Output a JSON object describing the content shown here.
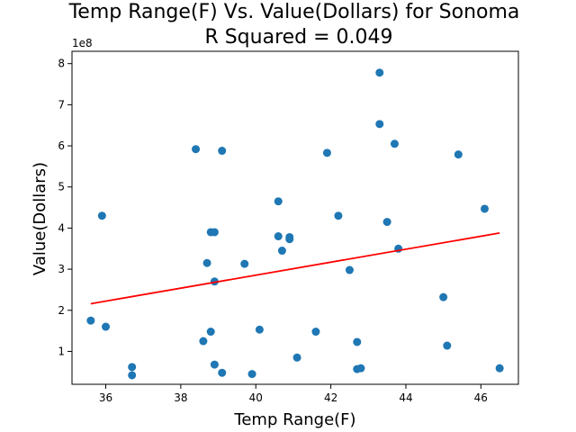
{
  "chart_data": {
    "type": "scatter",
    "title_line1": "Temp Range(F) Vs. Value(Dollars) for Sonoma",
    "title_line2": "R Squared =  0.049",
    "xlabel": "Temp Range(F)",
    "ylabel": "Value(Dollars)",
    "y_offset_label": "1e8",
    "xlim": [
      35.1,
      47.0
    ],
    "ylim": [
      0.2,
      8.3
    ],
    "x_ticks": [
      36,
      38,
      40,
      42,
      44,
      46
    ],
    "y_ticks": [
      1,
      2,
      3,
      4,
      5,
      6,
      7,
      8
    ],
    "point_color": "#1f77b4",
    "line_color": "#ff0000",
    "points": [
      {
        "x": 35.6,
        "y": 1.75
      },
      {
        "x": 36.0,
        "y": 1.6
      },
      {
        "x": 35.9,
        "y": 4.3
      },
      {
        "x": 36.7,
        "y": 0.62
      },
      {
        "x": 36.7,
        "y": 0.42
      },
      {
        "x": 38.4,
        "y": 5.92
      },
      {
        "x": 38.6,
        "y": 1.25
      },
      {
        "x": 38.7,
        "y": 3.15
      },
      {
        "x": 38.8,
        "y": 3.9
      },
      {
        "x": 38.8,
        "y": 1.48
      },
      {
        "x": 38.9,
        "y": 3.9
      },
      {
        "x": 38.9,
        "y": 2.7
      },
      {
        "x": 38.9,
        "y": 0.68
      },
      {
        "x": 39.1,
        "y": 5.88
      },
      {
        "x": 39.1,
        "y": 0.48
      },
      {
        "x": 39.7,
        "y": 3.13
      },
      {
        "x": 39.9,
        "y": 0.45
      },
      {
        "x": 40.1,
        "y": 1.53
      },
      {
        "x": 40.6,
        "y": 4.65
      },
      {
        "x": 40.6,
        "y": 3.8
      },
      {
        "x": 40.7,
        "y": 3.45
      },
      {
        "x": 40.9,
        "y": 3.78
      },
      {
        "x": 40.9,
        "y": 3.73
      },
      {
        "x": 41.1,
        "y": 0.85
      },
      {
        "x": 41.6,
        "y": 1.48
      },
      {
        "x": 41.9,
        "y": 5.83
      },
      {
        "x": 42.2,
        "y": 4.3
      },
      {
        "x": 42.5,
        "y": 2.98
      },
      {
        "x": 42.7,
        "y": 1.23
      },
      {
        "x": 42.7,
        "y": 0.57
      },
      {
        "x": 42.8,
        "y": 0.59
      },
      {
        "x": 43.3,
        "y": 7.78
      },
      {
        "x": 43.3,
        "y": 6.53
      },
      {
        "x": 43.5,
        "y": 4.15
      },
      {
        "x": 43.7,
        "y": 6.05
      },
      {
        "x": 43.8,
        "y": 3.5
      },
      {
        "x": 45.0,
        "y": 2.32
      },
      {
        "x": 45.1,
        "y": 1.14
      },
      {
        "x": 45.4,
        "y": 5.79
      },
      {
        "x": 46.1,
        "y": 4.47
      },
      {
        "x": 46.5,
        "y": 0.59
      }
    ],
    "regression_line": [
      {
        "x": 35.6,
        "y": 2.16
      },
      {
        "x": 46.5,
        "y": 3.88
      }
    ]
  }
}
